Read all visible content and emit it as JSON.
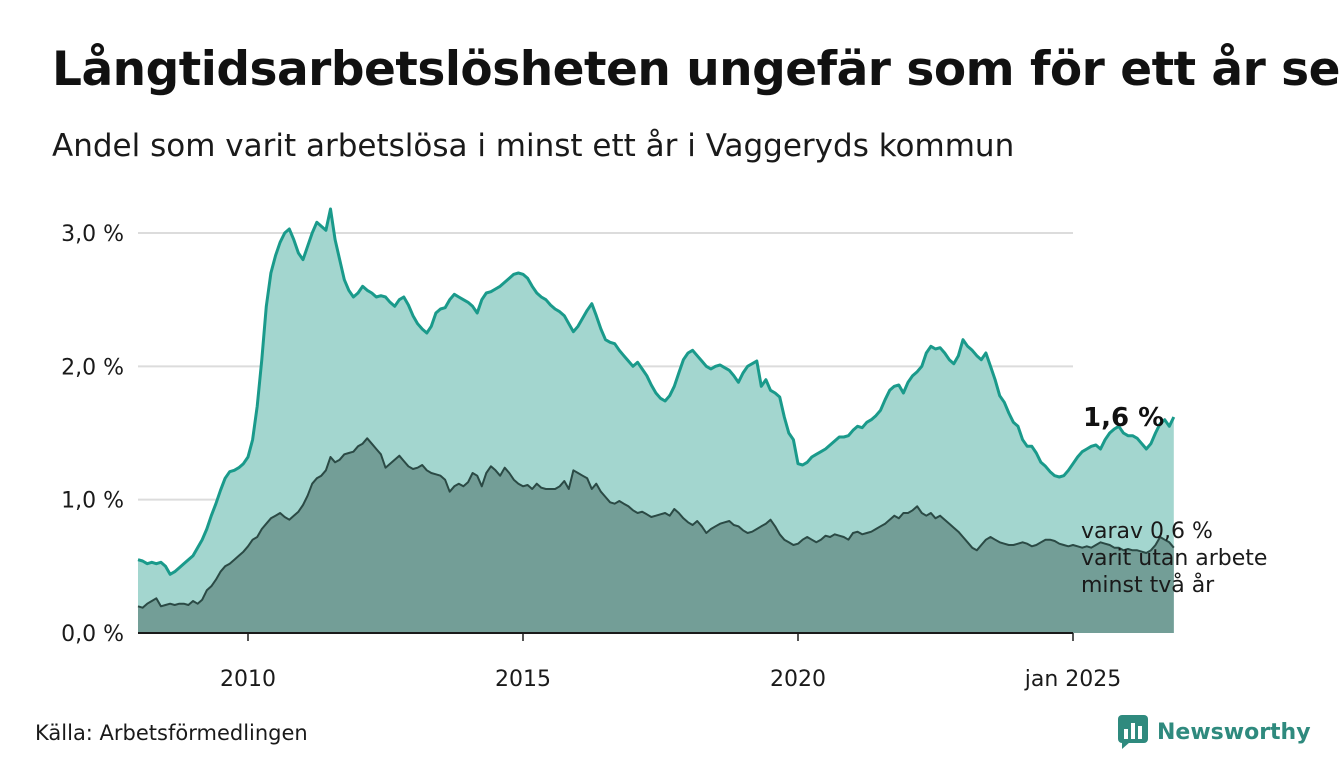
{
  "header": {
    "title": "Långtidsarbetslösheten ungefär som för ett år sen",
    "subtitle": "Andel som varit arbetslösa i minst ett år i Vaggeryds kommun"
  },
  "footer": {
    "source": "Källa: Arbetsförmedlingen",
    "brand": "Newsworthy"
  },
  "colors": {
    "total_fill": "#a3d6cf",
    "total_line": "#1a9a8b",
    "twoyear_fill": "#739e97",
    "twoyear_line": "#2b4a45",
    "grid": "#dcdcdc",
    "brand": "#2f8a7e"
  },
  "chart_data": {
    "type": "area",
    "x_start": "2008-01",
    "x_end": "2025-01",
    "x_frequency": "monthly",
    "ylim": [
      0,
      3.0
    ],
    "y_ticks": [
      0,
      1,
      2,
      3
    ],
    "y_tick_labels": [
      "0,0 %",
      "1,0 %",
      "2,0 %",
      "3,0 %"
    ],
    "x_ticks": [
      "2010-01",
      "2015-01",
      "2020-01",
      "2025-01"
    ],
    "x_tick_labels": [
      "2010",
      "2015",
      "2020",
      "jan 2025"
    ],
    "grid": "horizontal",
    "series": [
      {
        "key": "total",
        "end_label": "1,6 %",
        "values": [
          0.55,
          0.54,
          0.52,
          0.53,
          0.52,
          0.53,
          0.5,
          0.44,
          0.46,
          0.49,
          0.52,
          0.55,
          0.58,
          0.64,
          0.7,
          0.78,
          0.88,
          0.97,
          1.07,
          1.16,
          1.21,
          1.22,
          1.24,
          1.27,
          1.32,
          1.45,
          1.7,
          2.05,
          2.45,
          2.7,
          2.83,
          2.93,
          3.0,
          3.03,
          2.95,
          2.85,
          2.8,
          2.9,
          3.0,
          3.08,
          3.05,
          3.02,
          3.18,
          2.95,
          2.8,
          2.65,
          2.57,
          2.52,
          2.55,
          2.6,
          2.57,
          2.55,
          2.52,
          2.53,
          2.52,
          2.48,
          2.45,
          2.5,
          2.52,
          2.46,
          2.38,
          2.32,
          2.28,
          2.25,
          2.3,
          2.4,
          2.43,
          2.44,
          2.5,
          2.54,
          2.52,
          2.5,
          2.48,
          2.45,
          2.4,
          2.5,
          2.55,
          2.56,
          2.58,
          2.6,
          2.63,
          2.66,
          2.69,
          2.7,
          2.69,
          2.66,
          2.6,
          2.55,
          2.52,
          2.5,
          2.46,
          2.43,
          2.41,
          2.38,
          2.32,
          2.26,
          2.3,
          2.36,
          2.42,
          2.47,
          2.38,
          2.28,
          2.2,
          2.18,
          2.17,
          2.12,
          2.08,
          2.04,
          2.0,
          2.03,
          1.98,
          1.93,
          1.86,
          1.8,
          1.76,
          1.74,
          1.78,
          1.85,
          1.95,
          2.05,
          2.1,
          2.12,
          2.08,
          2.04,
          2.0,
          1.98,
          2.0,
          2.01,
          1.99,
          1.97,
          1.93,
          1.88,
          1.95,
          2.0,
          2.02,
          2.04,
          1.85,
          1.9,
          1.82,
          1.8,
          1.77,
          1.62,
          1.5,
          1.45,
          1.27,
          1.26,
          1.28,
          1.32,
          1.34,
          1.36,
          1.38,
          1.41,
          1.44,
          1.47,
          1.47,
          1.48,
          1.52,
          1.55,
          1.54,
          1.58,
          1.6,
          1.63,
          1.67,
          1.75,
          1.82,
          1.85,
          1.86,
          1.8,
          1.88,
          1.93,
          1.96,
          2.0,
          2.1,
          2.15,
          2.13,
          2.14,
          2.1,
          2.05,
          2.02,
          2.08,
          2.2,
          2.15,
          2.12,
          2.08,
          2.05,
          2.1,
          2.0,
          1.9,
          1.78,
          1.73,
          1.65,
          1.58,
          1.55,
          1.45,
          1.4,
          1.4,
          1.35,
          1.28,
          1.25,
          1.21,
          1.18,
          1.17,
          1.18,
          1.22,
          1.27,
          1.32,
          1.36,
          1.38,
          1.4,
          1.41,
          1.38,
          1.45,
          1.5,
          1.53,
          1.55,
          1.5,
          1.48,
          1.48,
          1.46,
          1.42,
          1.38,
          1.42,
          1.5,
          1.57,
          1.6,
          1.55,
          1.62
        ]
      },
      {
        "key": "two_year",
        "end_label_lines": [
          "varav 0,6 %",
          "varit utan arbete",
          "minst två år"
        ],
        "values": [
          0.2,
          0.19,
          0.22,
          0.24,
          0.26,
          0.2,
          0.21,
          0.22,
          0.21,
          0.22,
          0.22,
          0.21,
          0.24,
          0.22,
          0.25,
          0.32,
          0.35,
          0.4,
          0.46,
          0.5,
          0.52,
          0.55,
          0.58,
          0.61,
          0.65,
          0.7,
          0.72,
          0.78,
          0.82,
          0.86,
          0.88,
          0.9,
          0.87,
          0.85,
          0.88,
          0.91,
          0.96,
          1.03,
          1.12,
          1.16,
          1.18,
          1.22,
          1.32,
          1.28,
          1.3,
          1.34,
          1.35,
          1.36,
          1.4,
          1.42,
          1.46,
          1.42,
          1.38,
          1.34,
          1.24,
          1.27,
          1.3,
          1.33,
          1.29,
          1.25,
          1.23,
          1.24,
          1.26,
          1.22,
          1.2,
          1.19,
          1.18,
          1.15,
          1.06,
          1.1,
          1.12,
          1.1,
          1.13,
          1.2,
          1.18,
          1.1,
          1.2,
          1.25,
          1.22,
          1.18,
          1.24,
          1.2,
          1.15,
          1.12,
          1.1,
          1.11,
          1.08,
          1.12,
          1.09,
          1.08,
          1.08,
          1.08,
          1.1,
          1.14,
          1.08,
          1.22,
          1.2,
          1.18,
          1.16,
          1.08,
          1.12,
          1.06,
          1.02,
          0.98,
          0.97,
          0.99,
          0.97,
          0.95,
          0.92,
          0.9,
          0.91,
          0.89,
          0.87,
          0.88,
          0.89,
          0.9,
          0.88,
          0.93,
          0.9,
          0.86,
          0.83,
          0.81,
          0.84,
          0.8,
          0.75,
          0.78,
          0.8,
          0.82,
          0.83,
          0.84,
          0.81,
          0.8,
          0.77,
          0.75,
          0.76,
          0.78,
          0.8,
          0.82,
          0.85,
          0.8,
          0.74,
          0.7,
          0.68,
          0.66,
          0.67,
          0.7,
          0.72,
          0.7,
          0.68,
          0.7,
          0.73,
          0.72,
          0.74,
          0.73,
          0.72,
          0.7,
          0.75,
          0.76,
          0.74,
          0.75,
          0.76,
          0.78,
          0.8,
          0.82,
          0.85,
          0.88,
          0.86,
          0.9,
          0.9,
          0.92,
          0.95,
          0.9,
          0.88,
          0.9,
          0.86,
          0.88,
          0.85,
          0.82,
          0.79,
          0.76,
          0.72,
          0.68,
          0.64,
          0.62,
          0.66,
          0.7,
          0.72,
          0.7,
          0.68,
          0.67,
          0.66,
          0.66,
          0.67,
          0.68,
          0.67,
          0.65,
          0.66,
          0.68,
          0.7,
          0.7,
          0.69,
          0.67,
          0.66,
          0.65,
          0.66,
          0.65,
          0.64,
          0.65,
          0.64,
          0.66,
          0.68,
          0.67,
          0.66,
          0.64,
          0.64,
          0.62,
          0.63,
          0.62,
          0.62,
          0.61,
          0.6,
          0.62,
          0.66,
          0.72,
          0.7,
          0.68,
          0.64
        ]
      }
    ]
  }
}
